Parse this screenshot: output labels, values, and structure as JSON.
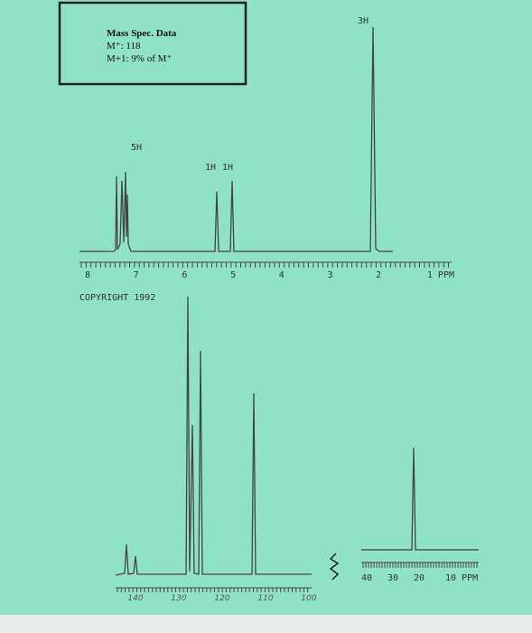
{
  "mass_spec": {
    "title": "Mass Spec. Data",
    "lines": [
      "M⁺: 118",
      "M+1: 9% of M⁺"
    ]
  },
  "proton_nmr": {
    "integrations": [
      "5H",
      "1H",
      "1H",
      "3H"
    ],
    "axis_labels": [
      "8",
      "7",
      "6",
      "5",
      "4",
      "3",
      "2",
      "1 PPM"
    ],
    "copyright": "COPYRIGHT 1992"
  },
  "carbon_nmr": {
    "axis_labels": [
      "40",
      "30",
      "20",
      "10 PPM"
    ],
    "handwritten_labels": [
      "140",
      "130",
      "120",
      "110",
      "100"
    ]
  }
}
